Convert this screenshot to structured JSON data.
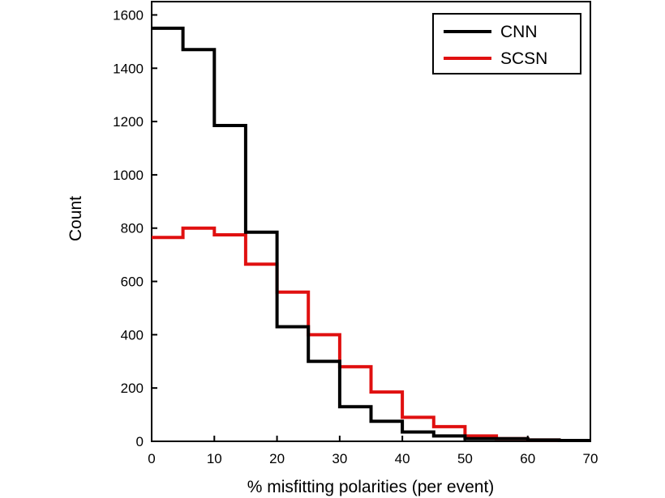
{
  "chart_data": {
    "type": "line",
    "step": true,
    "xlabel": "% misfitting polarities (per event)",
    "ylabel": "Count",
    "xlim": [
      0,
      70
    ],
    "ylim": [
      0,
      1650
    ],
    "xticks": [
      0,
      10,
      20,
      30,
      40,
      50,
      60,
      70
    ],
    "yticks": [
      0,
      200,
      400,
      600,
      800,
      1000,
      1200,
      1400,
      1600
    ],
    "grid": false,
    "legend_position": "top-right",
    "bin_edges": [
      0,
      5,
      10,
      15,
      20,
      25,
      30,
      35,
      40,
      45,
      50,
      55,
      60,
      65,
      70
    ],
    "series": [
      {
        "name": "CNN",
        "color": "#000000",
        "values": [
          1550,
          1470,
          1185,
          785,
          430,
          300,
          130,
          75,
          35,
          20,
          10,
          10,
          5,
          3
        ]
      },
      {
        "name": "SCSN",
        "color": "#e01010",
        "values": [
          765,
          800,
          775,
          665,
          560,
          400,
          280,
          185,
          90,
          55,
          20,
          10,
          5,
          3
        ]
      }
    ]
  }
}
